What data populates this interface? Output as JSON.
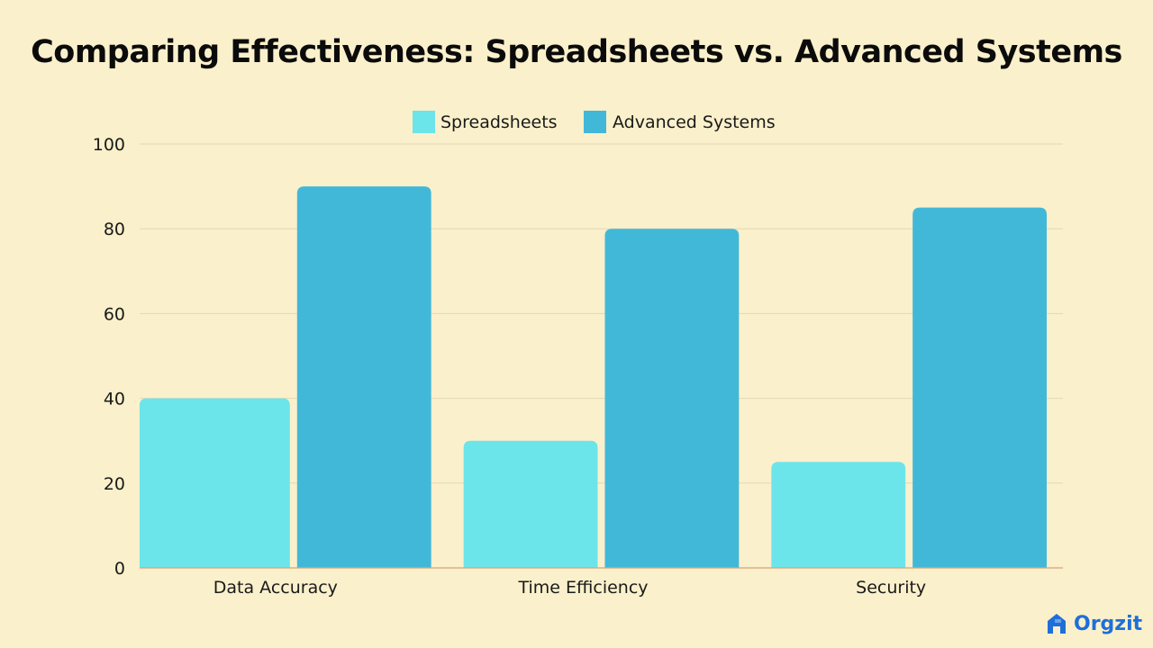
{
  "chart_data": {
    "type": "bar",
    "title": "Comparing Effectiveness: Spreadsheets vs. Advanced Systems",
    "categories": [
      "Data Accuracy",
      "Time Efficiency",
      "Security"
    ],
    "series": [
      {
        "name": "Spreadsheets",
        "values": [
          40,
          30,
          25
        ],
        "color": "#6be5ea"
      },
      {
        "name": "Advanced Systems",
        "values": [
          90,
          80,
          85
        ],
        "color": "#42b8d8"
      }
    ],
    "xlabel": "",
    "ylabel": "",
    "ylim": [
      0,
      100
    ],
    "yticks": [
      0,
      20,
      40,
      60,
      80,
      100
    ],
    "grid": true,
    "legend_position": "top-center"
  },
  "colors": {
    "background": "#faf0cb",
    "gridline": "#e2d8b4",
    "baseline": "#d6a47a",
    "text": "#1a1a1a",
    "brand": "#1e6fd8"
  },
  "brand": {
    "name": "Orgzit",
    "icon": "orgzit-logo-icon"
  }
}
